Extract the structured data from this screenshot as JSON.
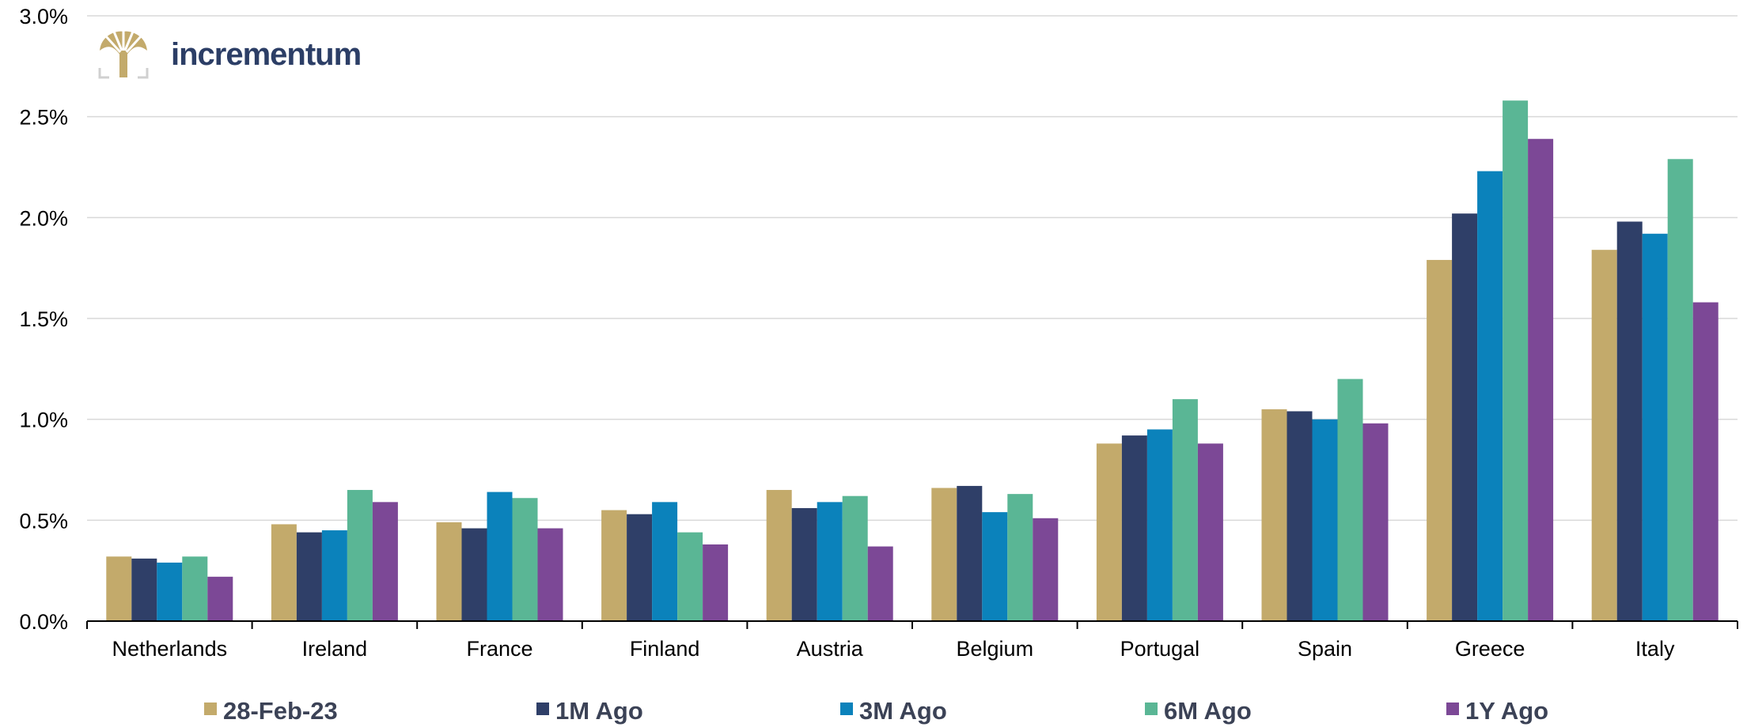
{
  "logo": {
    "text": "incrementum",
    "icon": "tree-icon"
  },
  "colors": {
    "series": [
      "#c3aa6b",
      "#2f3f68",
      "#0b82bb",
      "#5ab695",
      "#7c4896"
    ],
    "grid": "#d9d9d9",
    "axis": "#000000",
    "logo_gold": "#c3aa6b",
    "logo_text": "#2c3e66"
  },
  "chart_data": {
    "type": "bar",
    "categories": [
      "Netherlands",
      "Ireland",
      "France",
      "Finland",
      "Austria",
      "Belgium",
      "Portugal",
      "Spain",
      "Greece",
      "Italy"
    ],
    "series": [
      {
        "name": "28-Feb-23",
        "values": [
          0.32,
          0.48,
          0.49,
          0.55,
          0.65,
          0.66,
          0.88,
          1.05,
          1.79,
          1.84
        ]
      },
      {
        "name": "1M Ago",
        "values": [
          0.31,
          0.44,
          0.46,
          0.53,
          0.56,
          0.67,
          0.92,
          1.04,
          2.02,
          1.98
        ]
      },
      {
        "name": "3M Ago",
        "values": [
          0.29,
          0.45,
          0.64,
          0.59,
          0.59,
          0.54,
          0.95,
          1.0,
          2.23,
          1.92
        ]
      },
      {
        "name": "6M Ago",
        "values": [
          0.32,
          0.65,
          0.61,
          0.44,
          0.62,
          0.63,
          1.1,
          1.2,
          2.58,
          2.29
        ]
      },
      {
        "name": "1Y Ago",
        "values": [
          0.22,
          0.59,
          0.46,
          0.38,
          0.37,
          0.51,
          0.88,
          0.98,
          2.39,
          1.58
        ]
      }
    ],
    "yticks": [
      "0.0%",
      "0.5%",
      "1.0%",
      "1.5%",
      "2.0%",
      "2.5%",
      "3.0%"
    ],
    "ylim": [
      0,
      3.0
    ],
    "ytick_step": 0.5,
    "title": "",
    "xlabel": "",
    "ylabel": "",
    "grid": true,
    "legend_position": "bottom"
  }
}
